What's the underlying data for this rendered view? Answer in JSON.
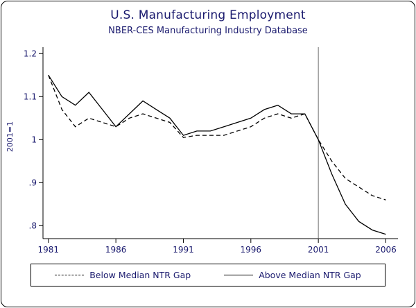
{
  "chart_data": {
    "type": "line",
    "title": "U.S. Manufacturing Employment",
    "subtitle": "NBER-CES Manufacturing Industry Database",
    "ylabel": "2001=1",
    "xlabel": "",
    "x": [
      1981,
      1982,
      1983,
      1984,
      1985,
      1986,
      1987,
      1988,
      1989,
      1990,
      1991,
      1992,
      1993,
      1994,
      1995,
      1996,
      1997,
      1998,
      1999,
      2000,
      2001,
      2002,
      2003,
      2004,
      2005,
      2006
    ],
    "series": [
      {
        "name": "Below Median NTR Gap",
        "style": "dashed",
        "values": [
          1.15,
          1.07,
          1.03,
          1.05,
          1.04,
          1.03,
          1.05,
          1.06,
          1.05,
          1.04,
          1.005,
          1.01,
          1.01,
          1.01,
          1.02,
          1.03,
          1.05,
          1.06,
          1.05,
          1.06,
          1.0,
          0.95,
          0.91,
          0.89,
          0.87,
          0.86
        ]
      },
      {
        "name": "Above Median NTR Gap",
        "style": "solid",
        "values": [
          1.15,
          1.1,
          1.08,
          1.11,
          1.07,
          1.03,
          1.06,
          1.09,
          1.07,
          1.05,
          1.01,
          1.02,
          1.02,
          1.03,
          1.04,
          1.05,
          1.07,
          1.08,
          1.06,
          1.06,
          1.0,
          0.92,
          0.85,
          0.81,
          0.79,
          0.78
        ]
      }
    ],
    "xticks": [
      1981,
      1986,
      1991,
      1996,
      2001,
      2006
    ],
    "yticks": [
      0.8,
      0.9,
      1,
      1.1,
      1.2
    ],
    "ytick_labels": [
      ".8",
      ".9",
      "1",
      "1.1",
      "1.2"
    ],
    "xlim": [
      1980.6,
      2006.9
    ],
    "ylim": [
      0.77,
      1.215
    ],
    "vline_x": 2001,
    "grid": false,
    "legend_position": "bottom",
    "colors": {
      "text": "#1a1a6e",
      "line": "#000000",
      "reference_line": "#707070"
    }
  }
}
